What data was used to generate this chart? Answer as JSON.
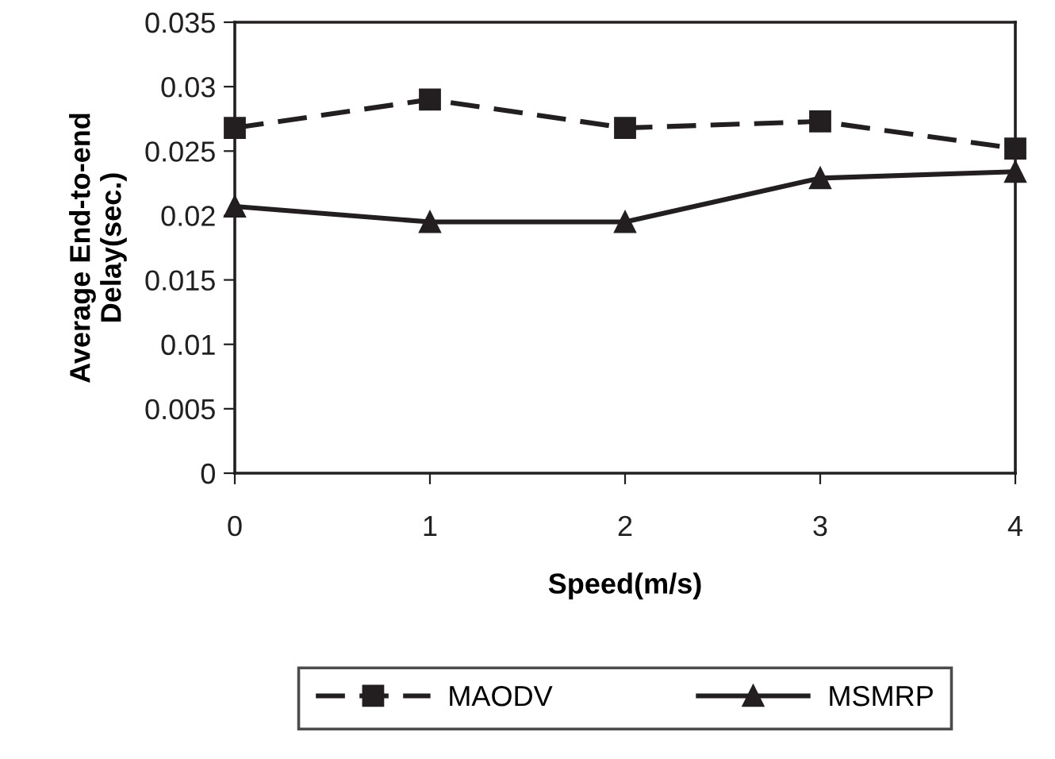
{
  "chart_data": {
    "type": "line",
    "xlabel": "Speed(m/s)",
    "ylabel": "Average End-to-end\nDelay(sec.)",
    "x": [
      0,
      1,
      2,
      3,
      4
    ],
    "xlim": [
      0,
      4
    ],
    "xticks": [
      0,
      1,
      2,
      3,
      4
    ],
    "ylim": [
      0,
      0.035
    ],
    "yticks": [
      0,
      0.005,
      0.01,
      0.015,
      0.02,
      0.025,
      0.03,
      0.035
    ],
    "series": [
      {
        "name": "MAODV",
        "color": "#231f20",
        "values": [
          0.0268,
          0.029,
          0.0268,
          0.0273,
          0.0252
        ],
        "marker": "square",
        "line_style": "dashed"
      },
      {
        "name": "MSMRP",
        "color": "#231f20",
        "values": [
          0.0207,
          0.0195,
          0.0195,
          0.0229,
          0.0234
        ],
        "marker": "triangle",
        "line_style": "solid"
      }
    ],
    "grid": false,
    "legend": "bottom"
  }
}
